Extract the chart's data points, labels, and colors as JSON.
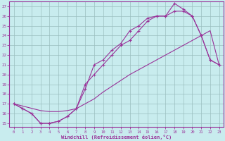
{
  "bg_color": "#c8ecee",
  "line_color": "#993399",
  "grid_color": "#9bbfbf",
  "xlim_min": -0.5,
  "xlim_max": 23.5,
  "ylim_min": 14.6,
  "ylim_max": 27.5,
  "yticks": [
    15,
    16,
    17,
    18,
    19,
    20,
    21,
    22,
    23,
    24,
    25,
    26,
    27
  ],
  "xticks": [
    0,
    1,
    2,
    3,
    4,
    5,
    6,
    7,
    8,
    9,
    10,
    11,
    12,
    13,
    14,
    15,
    16,
    17,
    18,
    19,
    20,
    21,
    22,
    23
  ],
  "xlabel": "Windchill (Refroidissement éolien,°C)",
  "line1_x": [
    0,
    1,
    2,
    3,
    4,
    5,
    6,
    7,
    8,
    9,
    10,
    11,
    12,
    13,
    14,
    15,
    16,
    17,
    18,
    19,
    20,
    21,
    22,
    23
  ],
  "line1_y": [
    17.0,
    16.5,
    16.0,
    15.0,
    15.0,
    15.2,
    15.7,
    16.5,
    18.5,
    21.0,
    21.5,
    22.5,
    23.2,
    24.5,
    25.0,
    25.8,
    26.0,
    26.0,
    27.3,
    26.7,
    26.0,
    24.0,
    21.5,
    21.0
  ],
  "line2_x": [
    0,
    1,
    2,
    3,
    4,
    5,
    6,
    7,
    8,
    9,
    10,
    11,
    12,
    13,
    14,
    15,
    16,
    17,
    18,
    19,
    20,
    21,
    22,
    23
  ],
  "line2_y": [
    17.0,
    16.5,
    16.0,
    15.0,
    15.0,
    15.2,
    15.7,
    16.5,
    19.0,
    20.0,
    21.0,
    22.0,
    23.0,
    23.5,
    24.5,
    25.5,
    26.0,
    26.0,
    26.5,
    26.5,
    26.0,
    24.0,
    21.5,
    21.0
  ],
  "line3_x": [
    0,
    3,
    4,
    5,
    6,
    7,
    8,
    9,
    10,
    11,
    12,
    13,
    14,
    15,
    16,
    17,
    18,
    19,
    20,
    21,
    22,
    23
  ],
  "line3_y": [
    17.0,
    16.3,
    16.2,
    16.2,
    16.3,
    16.5,
    17.0,
    17.5,
    18.2,
    18.8,
    19.4,
    20.0,
    20.5,
    21.0,
    21.5,
    22.0,
    22.5,
    23.0,
    23.5,
    24.0,
    24.5,
    21.0
  ]
}
